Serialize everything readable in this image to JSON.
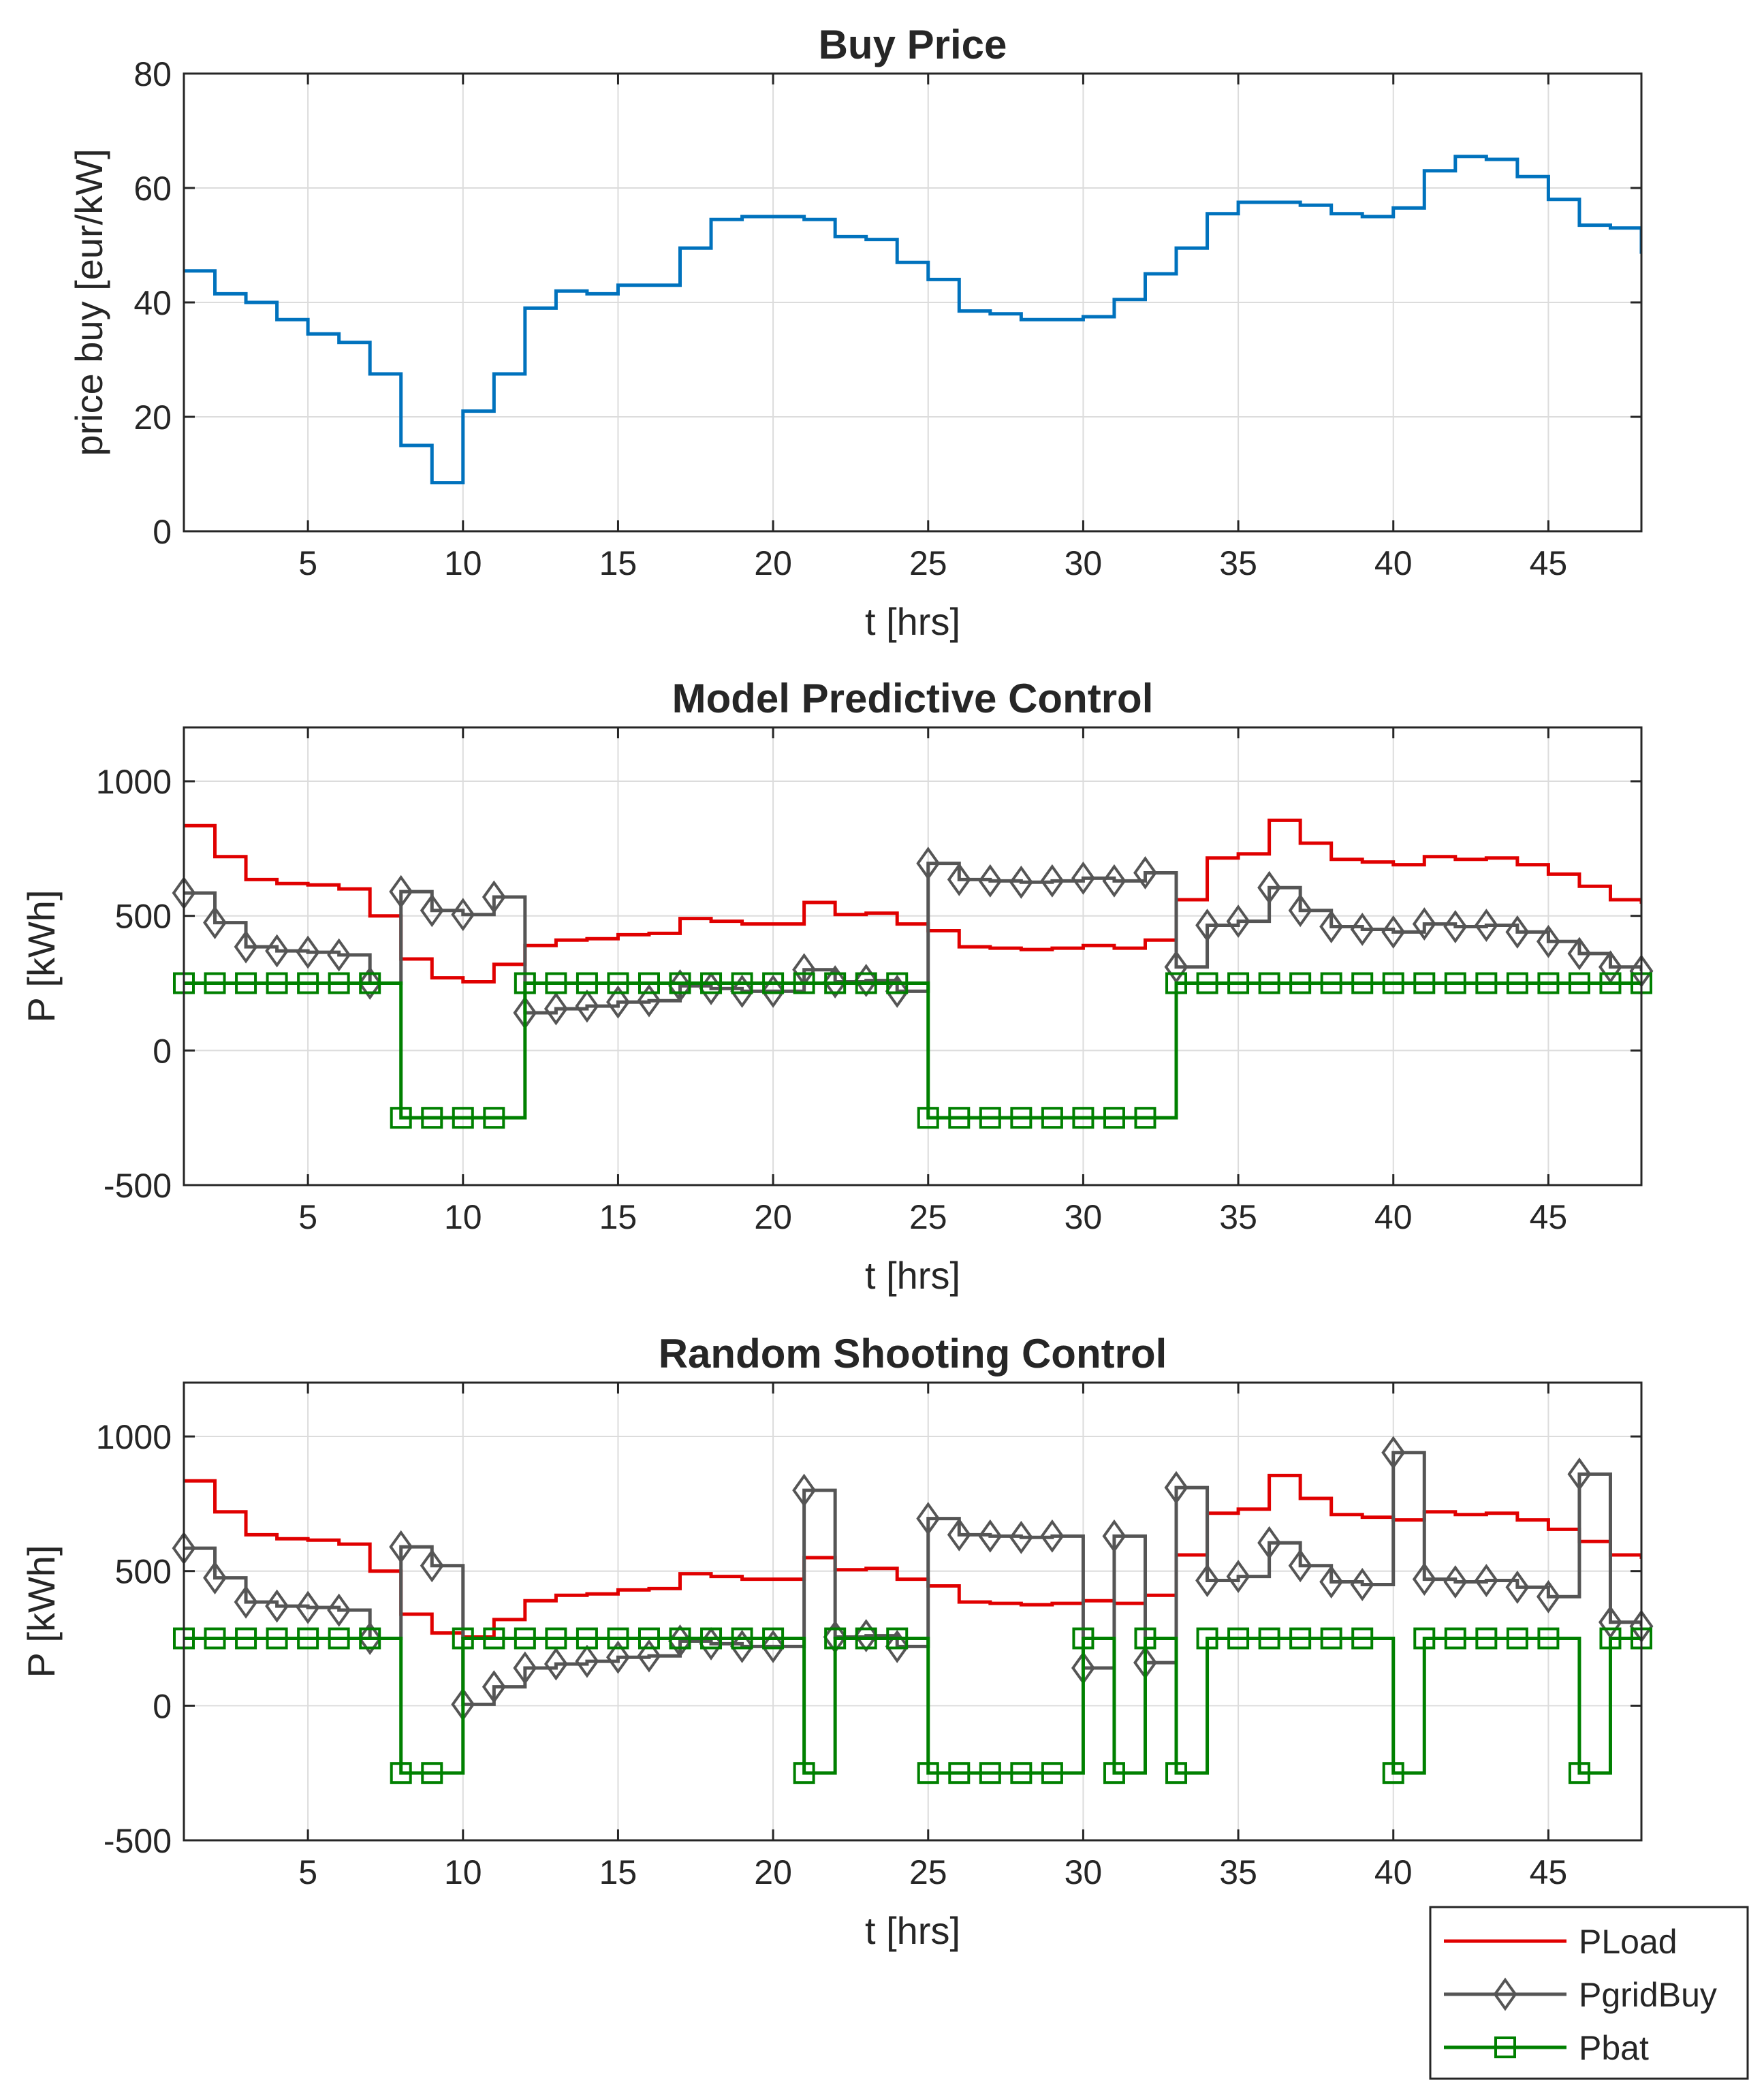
{
  "colors": {
    "price": "#0072BD",
    "pload": "#E00000",
    "pgrid": "#555555",
    "pbat": "#008000",
    "grid": "#DCDCDC",
    "axis": "#262626"
  },
  "legend": {
    "entries": [
      {
        "label": "PLoad",
        "color": "#E00000",
        "marker": "none"
      },
      {
        "label": "PgridBuy",
        "color": "#555555",
        "marker": "diamond"
      },
      {
        "label": "Pbat",
        "color": "#008000",
        "marker": "square"
      }
    ]
  },
  "chart_data": [
    {
      "type": "line",
      "step": true,
      "title": "Buy Price",
      "xlabel": "t [hrs]",
      "ylabel": "price buy [eur/kW]",
      "xlim": [
        1,
        48
      ],
      "ylim": [
        0,
        80
      ],
      "xticks": [
        5,
        10,
        15,
        20,
        25,
        30,
        35,
        40,
        45
      ],
      "yticks": [
        0,
        20,
        40,
        60,
        80
      ],
      "grid": true,
      "series": [
        {
          "key": "price",
          "marker": "none",
          "values": [
            45.5,
            41.5,
            40,
            37,
            34.5,
            33,
            27.5,
            15,
            8.5,
            21,
            27.5,
            39,
            42,
            41.5,
            43,
            43,
            49.5,
            54.5,
            55,
            55,
            54.5,
            51.5,
            51,
            47,
            44,
            38.5,
            38,
            37,
            37,
            37.5,
            40.5,
            45,
            49.5,
            55.5,
            57.5,
            57.5,
            57,
            55.5,
            55,
            56.5,
            63,
            65.5,
            65,
            62,
            58,
            53.5,
            53,
            48.5
          ]
        }
      ]
    },
    {
      "type": "line",
      "step": true,
      "title": "Model Predictive Control",
      "xlabel": "t [hrs]",
      "ylabel": "P [kWh]",
      "xlim": [
        1,
        48
      ],
      "ylim": [
        -500,
        1200
      ],
      "xticks": [
        5,
        10,
        15,
        20,
        25,
        30,
        35,
        40,
        45
      ],
      "yticks": [
        -500,
        0,
        500,
        1000
      ],
      "grid": true,
      "series": [
        {
          "key": "pload",
          "marker": "none",
          "values": [
            835,
            720,
            635,
            620,
            615,
            600,
            500,
            340,
            270,
            255,
            320,
            390,
            410,
            415,
            430,
            435,
            490,
            480,
            470,
            470,
            550,
            505,
            510,
            470,
            445,
            385,
            380,
            375,
            380,
            390,
            380,
            410,
            560,
            715,
            730,
            855,
            770,
            710,
            700,
            690,
            720,
            710,
            715,
            690,
            655,
            610,
            560,
            545
          ]
        },
        {
          "key": "pgrid",
          "marker": "diamond",
          "values": [
            585,
            475,
            385,
            370,
            365,
            355,
            250,
            590,
            520,
            505,
            570,
            140,
            155,
            165,
            180,
            185,
            240,
            230,
            220,
            220,
            300,
            255,
            260,
            220,
            695,
            635,
            630,
            625,
            630,
            640,
            630,
            660,
            310,
            465,
            480,
            605,
            520,
            460,
            450,
            440,
            470,
            460,
            465,
            440,
            405,
            360,
            310,
            295
          ]
        },
        {
          "key": "pbat",
          "marker": "square",
          "values": [
            250,
            250,
            250,
            250,
            250,
            250,
            250,
            -250,
            -250,
            -250,
            -250,
            250,
            250,
            250,
            250,
            250,
            250,
            250,
            250,
            250,
            250,
            250,
            250,
            250,
            -250,
            -250,
            -250,
            -250,
            -250,
            -250,
            -250,
            -250,
            250,
            250,
            250,
            250,
            250,
            250,
            250,
            250,
            250,
            250,
            250,
            250,
            250,
            250,
            250,
            250
          ]
        }
      ]
    },
    {
      "type": "line",
      "step": true,
      "title": "Random Shooting Control",
      "xlabel": "t [hrs]",
      "ylabel": "P [kWh]",
      "xlim": [
        1,
        48
      ],
      "ylim": [
        -500,
        1200
      ],
      "xticks": [
        5,
        10,
        15,
        20,
        25,
        30,
        35,
        40,
        45
      ],
      "yticks": [
        -500,
        0,
        500,
        1000
      ],
      "grid": true,
      "legend": "bottom-right",
      "series": [
        {
          "key": "pload",
          "marker": "none",
          "values": [
            835,
            720,
            635,
            620,
            615,
            600,
            500,
            340,
            270,
            255,
            320,
            390,
            410,
            415,
            430,
            435,
            490,
            480,
            470,
            470,
            550,
            505,
            510,
            470,
            445,
            385,
            380,
            375,
            380,
            390,
            380,
            410,
            560,
            715,
            730,
            855,
            770,
            710,
            700,
            690,
            720,
            710,
            715,
            690,
            655,
            610,
            560,
            545
          ]
        },
        {
          "key": "pgrid",
          "marker": "diamond",
          "values": [
            585,
            475,
            385,
            370,
            365,
            355,
            250,
            590,
            520,
            5,
            70,
            140,
            155,
            165,
            180,
            185,
            240,
            230,
            220,
            220,
            800,
            255,
            260,
            220,
            695,
            635,
            630,
            625,
            630,
            140,
            630,
            160,
            810,
            465,
            480,
            605,
            520,
            460,
            450,
            940,
            470,
            460,
            465,
            440,
            405,
            860,
            310,
            295
          ]
        },
        {
          "key": "pbat",
          "marker": "square",
          "values": [
            250,
            250,
            250,
            250,
            250,
            250,
            250,
            -250,
            -250,
            250,
            250,
            250,
            250,
            250,
            250,
            250,
            250,
            250,
            250,
            250,
            -250,
            250,
            250,
            250,
            -250,
            -250,
            -250,
            -250,
            -250,
            250,
            -250,
            250,
            -250,
            250,
            250,
            250,
            250,
            250,
            250,
            -250,
            250,
            250,
            250,
            250,
            250,
            -250,
            250,
            250
          ]
        }
      ]
    }
  ]
}
